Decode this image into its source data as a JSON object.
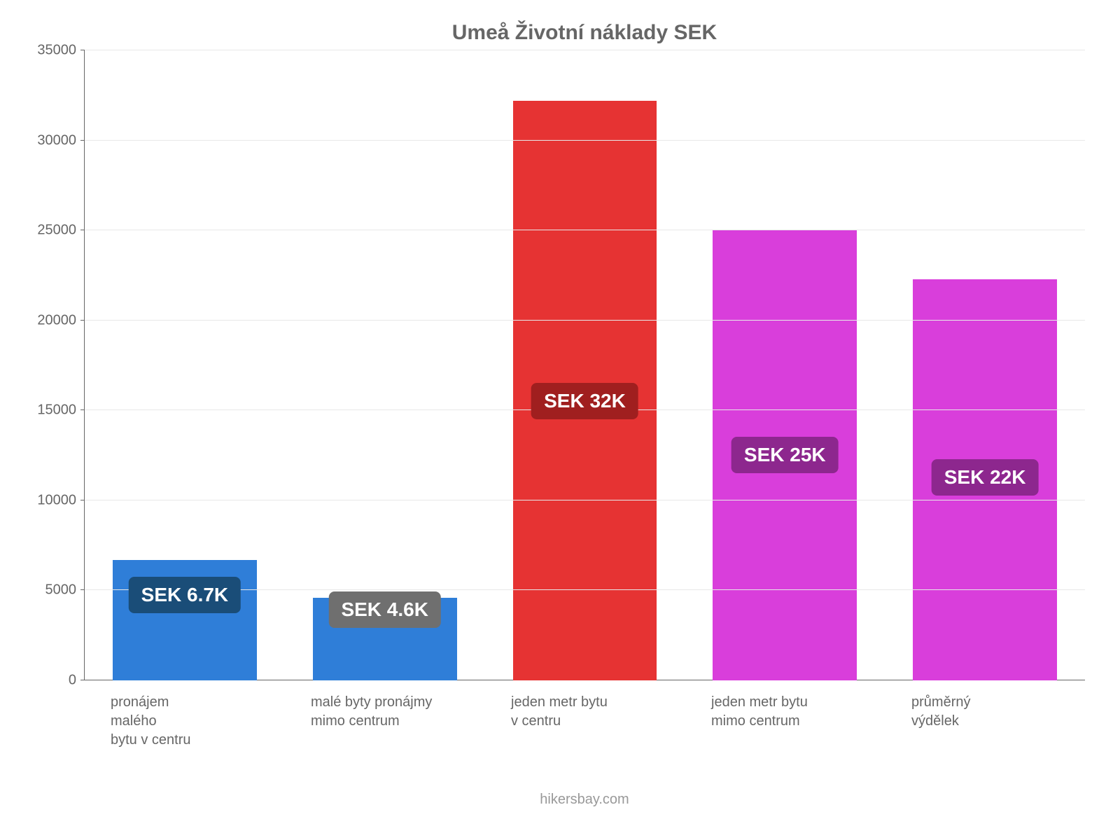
{
  "chart": {
    "type": "bar",
    "title": "Umeå Životní náklady SEK",
    "title_fontsize": 30,
    "title_color": "#666666",
    "background_color": "#ffffff",
    "grid_color": "#e8e8e8",
    "axis_color": "#666666",
    "tick_label_color": "#666666",
    "tick_label_fontsize": 20,
    "x_label_fontsize": 20,
    "ylim": [
      0,
      35000
    ],
    "ytick_step": 5000,
    "yticks": [
      0,
      5000,
      10000,
      15000,
      20000,
      25000,
      30000,
      35000
    ],
    "bar_width": 0.72,
    "categories": [
      "pronájem\nmalého\nbytu v centru",
      "malé byty pronájmy\nmimo centrum",
      "jeden metr bytu\nv centru",
      "jeden metr bytu\nmimo centrum",
      "průměrný\nvýdělek"
    ],
    "values": [
      6700,
      4600,
      32200,
      25000,
      22300
    ],
    "bar_colors": [
      "#2f7ed8",
      "#2f7ed8",
      "#e63333",
      "#d93edb",
      "#d93edb"
    ],
    "badge_labels": [
      "SEK 6.7K",
      "SEK 4.6K",
      "SEK 32K",
      "SEK 25K",
      "SEK 22K"
    ],
    "badge_bg_colors": [
      "#1a4d78",
      "#6f6f6f",
      "#a01f1f",
      "#8d278e",
      "#8d278e"
    ],
    "badge_text_color": "#ffffff",
    "badge_fontsize": 28,
    "badge_radius": 8,
    "badge_bottom_pct": [
      56,
      63,
      45,
      46,
      46
    ],
    "attribution": "hikersbay.com",
    "attribution_color": "#999999",
    "attribution_fontsize": 20
  }
}
